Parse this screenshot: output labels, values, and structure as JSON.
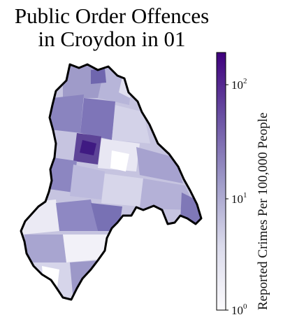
{
  "title_line1": "Public Order Offences",
  "title_line2": "in Croydon in 01",
  "colorbar": {
    "label": "Reported Crimes Per 100,000 People",
    "scale": "log",
    "colormap": "Purples",
    "colors": [
      "#fcfbfd",
      "#dadaeb",
      "#9e9ac8",
      "#6a51a3",
      "#3f007d"
    ],
    "range": [
      1,
      180
    ],
    "ticks": [
      {
        "base": "10",
        "exp": "0"
      },
      {
        "base": "10",
        "exp": "1"
      },
      {
        "base": "10",
        "exp": "2"
      }
    ]
  },
  "map": {
    "borough": "Croydon",
    "outline_color": "#000000"
  }
}
